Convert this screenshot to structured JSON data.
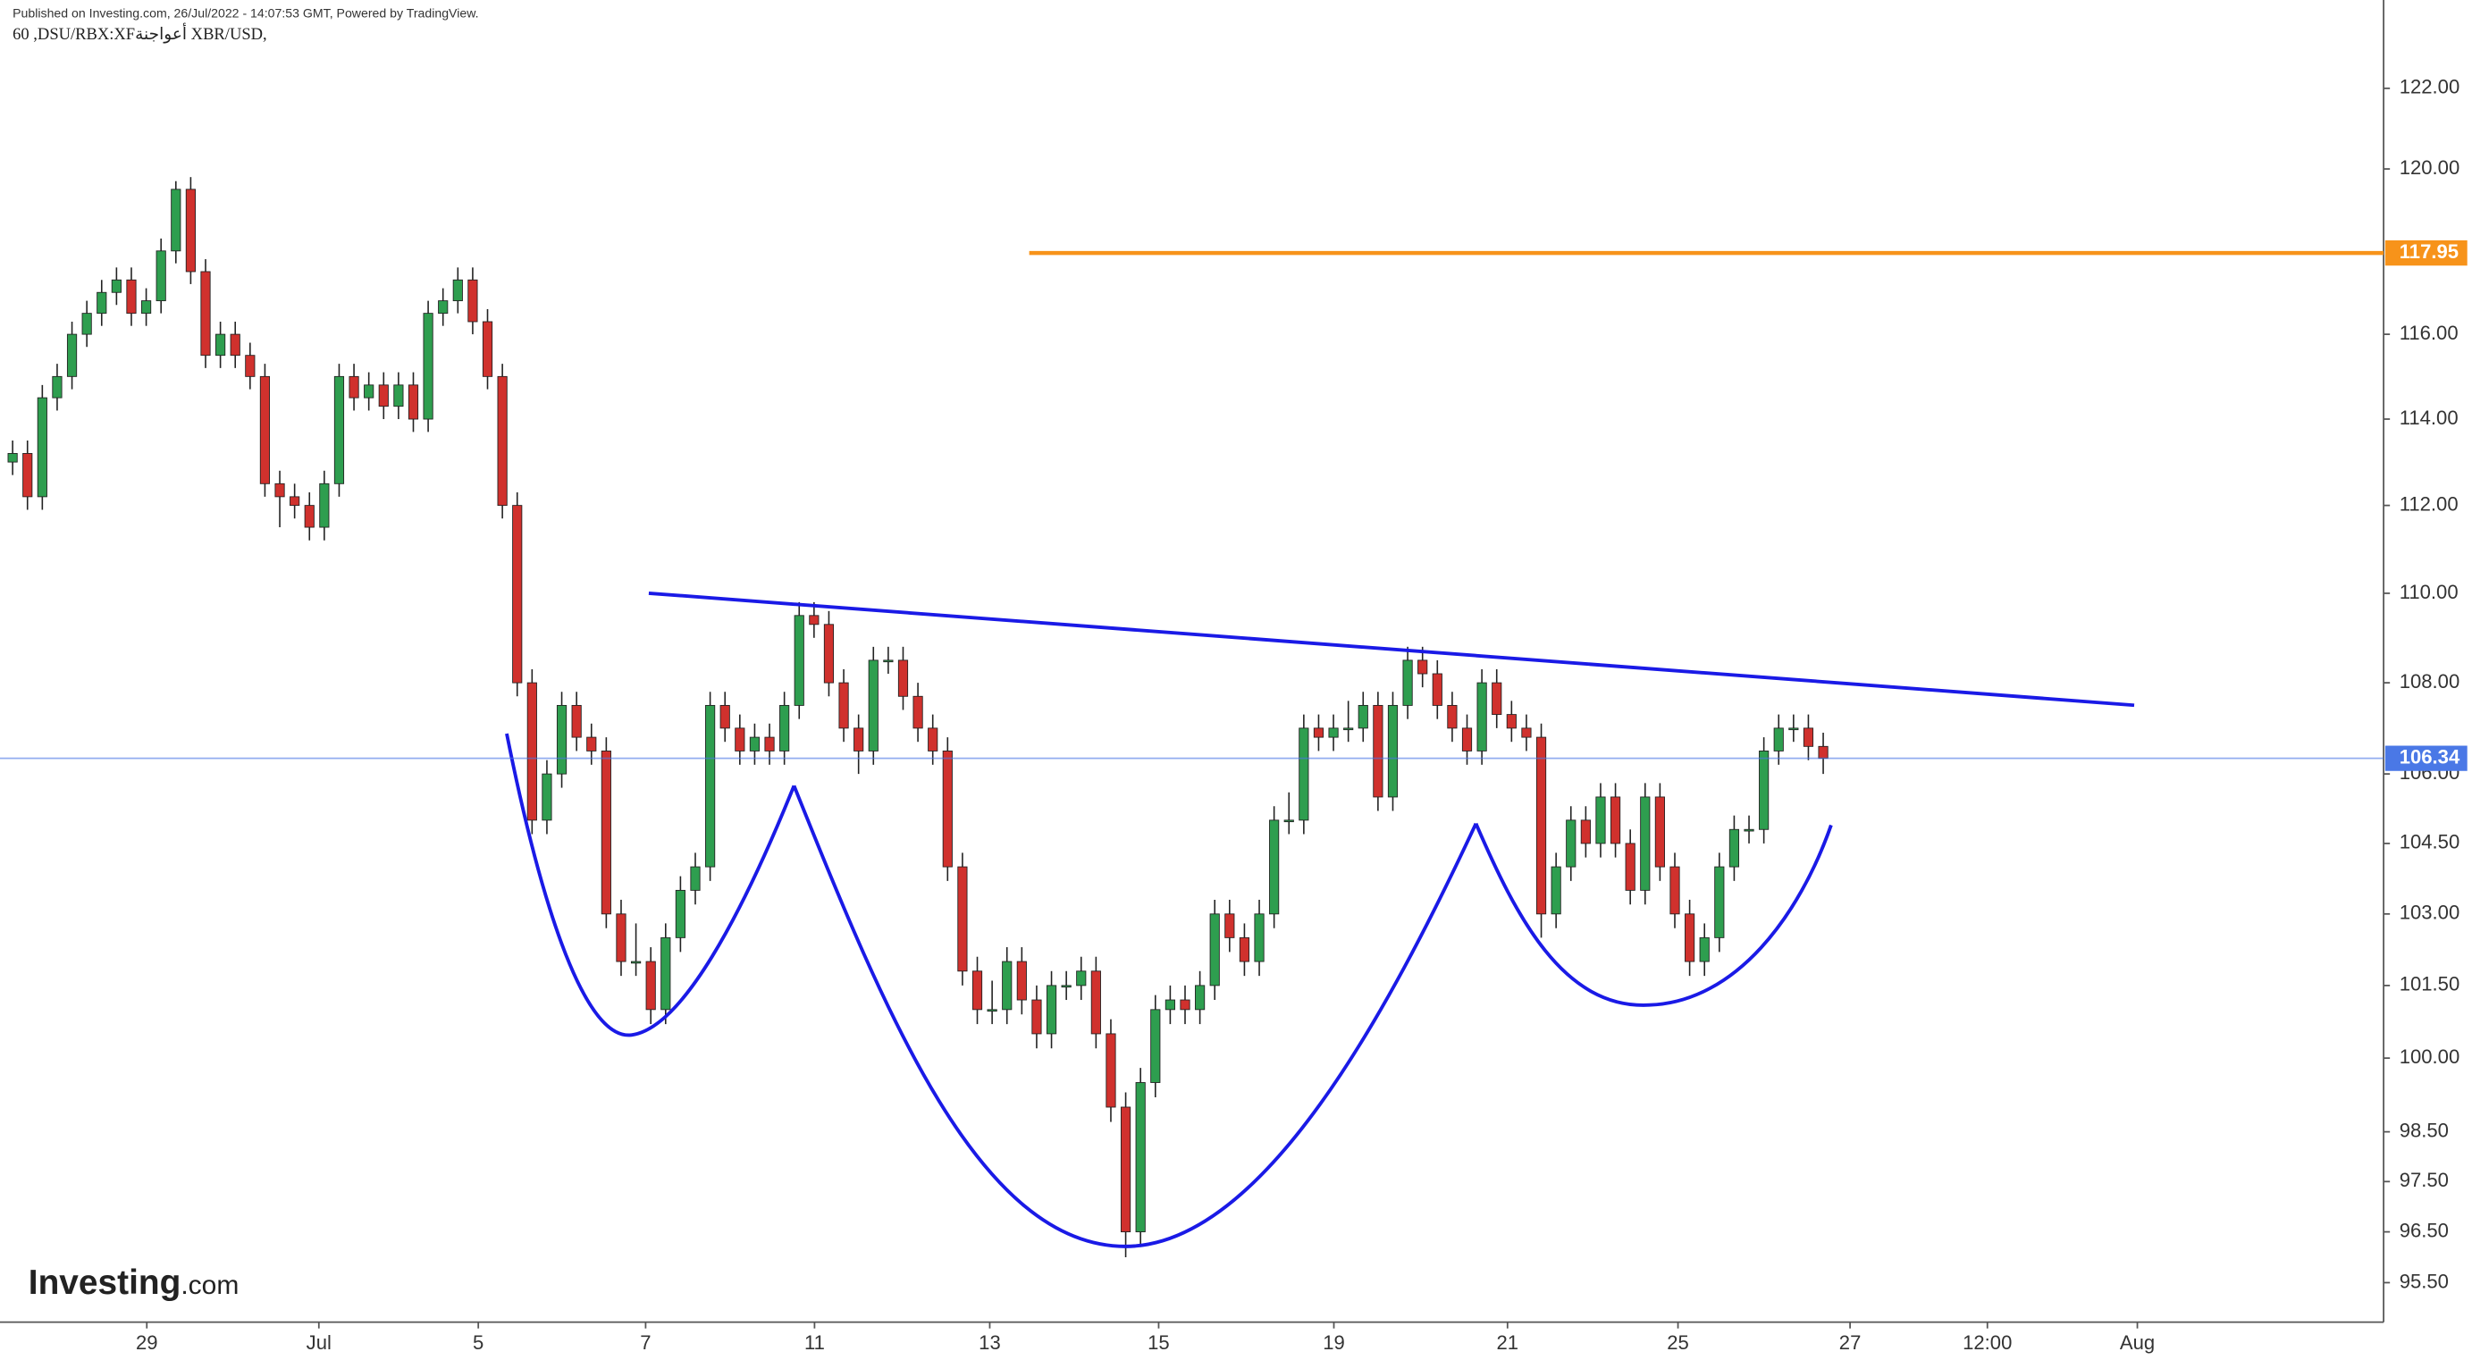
{
  "header": {
    "published": "Published on Investing.com, 26/Jul/2022 - 14:07:53 GMT, Powered by TradingView.",
    "symbol": "60 ,DSU/RBX:XFأعواجنة XBR/USD,"
  },
  "logo": {
    "brand": "Investing",
    "suffix": ".com"
  },
  "chart_data": {
    "type": "candlestick",
    "log": true,
    "up_color": "#2e9e4f",
    "down_color": "#d0312d",
    "ylim": [
      94.73,
      124.23
    ],
    "yticks": [
      {
        "value": 122,
        "label": "122.00"
      },
      {
        "value": 120,
        "label": "120.00"
      },
      {
        "value": 116,
        "label": "116.00"
      },
      {
        "value": 114,
        "label": "114.00"
      },
      {
        "value": 112,
        "label": "112.00"
      },
      {
        "value": 110,
        "label": "110.00"
      },
      {
        "value": 108,
        "label": "108.00"
      },
      {
        "value": 106,
        "label": "106.00"
      },
      {
        "value": 104.5,
        "label": "104.50"
      },
      {
        "value": 103,
        "label": "103.00"
      },
      {
        "value": 101.5,
        "label": "101.50"
      },
      {
        "value": 100,
        "label": "100.00"
      },
      {
        "value": 98.5,
        "label": "98.50"
      },
      {
        "value": 97.5,
        "label": "97.50"
      },
      {
        "value": 96.5,
        "label": "96.50"
      },
      {
        "value": 95.5,
        "label": "95.50"
      }
    ],
    "xtick_labels": [
      "29",
      "Jul",
      "5",
      "7",
      "11",
      "13",
      "15",
      "19",
      "21",
      "25",
      "27",
      "12:00",
      "Aug"
    ],
    "price_lines": [
      {
        "value": 117.95,
        "color": "#f7931a"
      },
      {
        "value": 106.34,
        "color": "#4a78e6"
      }
    ],
    "ohlc": [
      [
        113.0,
        113.5,
        112.7,
        113.2
      ],
      [
        113.2,
        113.5,
        111.9,
        112.2
      ],
      [
        112.2,
        114.8,
        111.9,
        114.5
      ],
      [
        114.5,
        115.3,
        114.2,
        115.0
      ],
      [
        115.0,
        116.3,
        114.7,
        116.0
      ],
      [
        116.0,
        116.8,
        115.7,
        116.5
      ],
      [
        116.5,
        117.3,
        116.2,
        117.0
      ],
      [
        117.0,
        117.6,
        116.7,
        117.3
      ],
      [
        117.3,
        117.6,
        116.2,
        116.5
      ],
      [
        116.5,
        117.1,
        116.2,
        116.8
      ],
      [
        116.8,
        118.3,
        116.5,
        118.0
      ],
      [
        118.0,
        119.7,
        117.7,
        119.5
      ],
      [
        119.5,
        119.8,
        117.2,
        117.5
      ],
      [
        117.5,
        117.8,
        115.2,
        115.5
      ],
      [
        115.5,
        116.3,
        115.2,
        116.0
      ],
      [
        116.0,
        116.3,
        115.2,
        115.5
      ],
      [
        115.5,
        115.8,
        114.7,
        115.0
      ],
      [
        115.0,
        115.3,
        112.2,
        112.5
      ],
      [
        112.5,
        112.8,
        111.5,
        112.2
      ],
      [
        112.2,
        112.5,
        111.7,
        112.0
      ],
      [
        112.0,
        112.3,
        111.2,
        111.5
      ],
      [
        111.5,
        112.8,
        111.2,
        112.5
      ],
      [
        112.5,
        115.3,
        112.2,
        115.0
      ],
      [
        115.0,
        115.3,
        114.2,
        114.5
      ],
      [
        114.5,
        115.1,
        114.2,
        114.8
      ],
      [
        114.8,
        115.1,
        114.0,
        114.3
      ],
      [
        114.3,
        115.1,
        114.0,
        114.8
      ],
      [
        114.8,
        115.1,
        113.7,
        114.0
      ],
      [
        114.0,
        116.8,
        113.7,
        116.5
      ],
      [
        116.5,
        117.1,
        116.2,
        116.8
      ],
      [
        116.8,
        117.6,
        116.5,
        117.3
      ],
      [
        117.3,
        117.6,
        116.0,
        116.3
      ],
      [
        116.3,
        116.6,
        114.7,
        115.0
      ],
      [
        115.0,
        115.3,
        111.7,
        112.0
      ],
      [
        112.0,
        112.3,
        107.7,
        108.0
      ],
      [
        108.0,
        108.3,
        104.7,
        105.0
      ],
      [
        105.0,
        106.3,
        104.7,
        106.0
      ],
      [
        106.0,
        107.8,
        105.7,
        107.5
      ],
      [
        107.5,
        107.8,
        106.5,
        106.8
      ],
      [
        106.8,
        107.1,
        106.2,
        106.5
      ],
      [
        106.5,
        106.8,
        102.7,
        103.0
      ],
      [
        103.0,
        103.3,
        101.7,
        102.0
      ],
      [
        102.0,
        102.8,
        101.7,
        102.0
      ],
      [
        102.0,
        102.3,
        100.7,
        101.0
      ],
      [
        101.0,
        102.8,
        100.7,
        102.5
      ],
      [
        102.5,
        103.8,
        102.2,
        103.5
      ],
      [
        103.5,
        104.3,
        103.2,
        104.0
      ],
      [
        104.0,
        107.8,
        103.7,
        107.5
      ],
      [
        107.5,
        107.8,
        106.7,
        107.0
      ],
      [
        107.0,
        107.3,
        106.2,
        106.5
      ],
      [
        106.5,
        107.1,
        106.2,
        106.8
      ],
      [
        106.8,
        107.1,
        106.2,
        106.5
      ],
      [
        106.5,
        107.8,
        106.2,
        107.5
      ],
      [
        107.5,
        109.8,
        107.2,
        109.5
      ],
      [
        109.5,
        109.8,
        109.0,
        109.3
      ],
      [
        109.3,
        109.6,
        107.7,
        108.0
      ],
      [
        108.0,
        108.3,
        106.7,
        107.0
      ],
      [
        107.0,
        107.3,
        106.0,
        106.5
      ],
      [
        106.5,
        108.8,
        106.2,
        108.5
      ],
      [
        108.5,
        108.8,
        108.2,
        108.5
      ],
      [
        108.5,
        108.8,
        107.4,
        107.7
      ],
      [
        107.7,
        108.0,
        106.7,
        107.0
      ],
      [
        107.0,
        107.3,
        106.2,
        106.5
      ],
      [
        106.5,
        106.8,
        103.7,
        104.0
      ],
      [
        104.0,
        104.3,
        101.5,
        101.8
      ],
      [
        101.8,
        102.1,
        100.7,
        101.0
      ],
      [
        101.0,
        101.6,
        100.7,
        101.0
      ],
      [
        101.0,
        102.3,
        100.7,
        102.0
      ],
      [
        102.0,
        102.3,
        100.9,
        101.2
      ],
      [
        101.2,
        101.5,
        100.2,
        100.5
      ],
      [
        100.5,
        101.8,
        100.2,
        101.5
      ],
      [
        101.5,
        101.8,
        101.2,
        101.5
      ],
      [
        101.5,
        102.1,
        101.2,
        101.8
      ],
      [
        101.8,
        102.1,
        100.2,
        100.5
      ],
      [
        100.5,
        100.8,
        98.7,
        99.0
      ],
      [
        99.0,
        99.3,
        96.0,
        96.5
      ],
      [
        96.5,
        99.8,
        96.2,
        99.5
      ],
      [
        99.5,
        101.3,
        99.2,
        101.0
      ],
      [
        101.0,
        101.5,
        100.7,
        101.2
      ],
      [
        101.2,
        101.5,
        100.7,
        101.0
      ],
      [
        101.0,
        101.8,
        100.7,
        101.5
      ],
      [
        101.5,
        103.3,
        101.2,
        103.0
      ],
      [
        103.0,
        103.3,
        102.2,
        102.5
      ],
      [
        102.5,
        102.8,
        101.7,
        102.0
      ],
      [
        102.0,
        103.3,
        101.7,
        103.0
      ],
      [
        103.0,
        105.3,
        102.7,
        105.0
      ],
      [
        105.0,
        105.6,
        104.7,
        105.0
      ],
      [
        105.0,
        107.3,
        104.7,
        107.0
      ],
      [
        107.0,
        107.3,
        106.5,
        106.8
      ],
      [
        106.8,
        107.3,
        106.5,
        107.0
      ],
      [
        107.0,
        107.6,
        106.7,
        107.0
      ],
      [
        107.0,
        107.8,
        106.7,
        107.5
      ],
      [
        107.5,
        107.8,
        105.2,
        105.5
      ],
      [
        105.5,
        107.8,
        105.2,
        107.5
      ],
      [
        107.5,
        108.8,
        107.2,
        108.5
      ],
      [
        108.5,
        108.8,
        107.9,
        108.2
      ],
      [
        108.2,
        108.5,
        107.2,
        107.5
      ],
      [
        107.5,
        107.8,
        106.7,
        107.0
      ],
      [
        107.0,
        107.3,
        106.2,
        106.5
      ],
      [
        106.5,
        108.3,
        106.2,
        108.0
      ],
      [
        108.0,
        108.3,
        107.0,
        107.3
      ],
      [
        107.3,
        107.6,
        106.7,
        107.0
      ],
      [
        107.0,
        107.3,
        106.5,
        106.8
      ],
      [
        106.8,
        107.1,
        102.5,
        103.0
      ],
      [
        103.0,
        104.3,
        102.7,
        104.0
      ],
      [
        104.0,
        105.3,
        103.7,
        105.0
      ],
      [
        105.0,
        105.3,
        104.2,
        104.5
      ],
      [
        104.5,
        105.8,
        104.2,
        105.5
      ],
      [
        105.5,
        105.8,
        104.2,
        104.5
      ],
      [
        104.5,
        104.8,
        103.2,
        103.5
      ],
      [
        103.5,
        105.8,
        103.2,
        105.5
      ],
      [
        105.5,
        105.8,
        103.7,
        104.0
      ],
      [
        104.0,
        104.3,
        102.7,
        103.0
      ],
      [
        103.0,
        103.3,
        101.7,
        102.0
      ],
      [
        102.0,
        102.8,
        101.7,
        102.5
      ],
      [
        102.5,
        104.3,
        102.2,
        104.0
      ],
      [
        104.0,
        105.1,
        103.7,
        104.8
      ],
      [
        104.8,
        105.1,
        104.5,
        104.8
      ],
      [
        104.8,
        106.8,
        104.5,
        106.5
      ],
      [
        106.5,
        107.3,
        106.2,
        107.0
      ],
      [
        107.0,
        107.3,
        106.7,
        107.0
      ],
      [
        107.0,
        107.3,
        106.3,
        106.6
      ],
      [
        106.6,
        106.9,
        106.0,
        106.34
      ]
    ]
  }
}
